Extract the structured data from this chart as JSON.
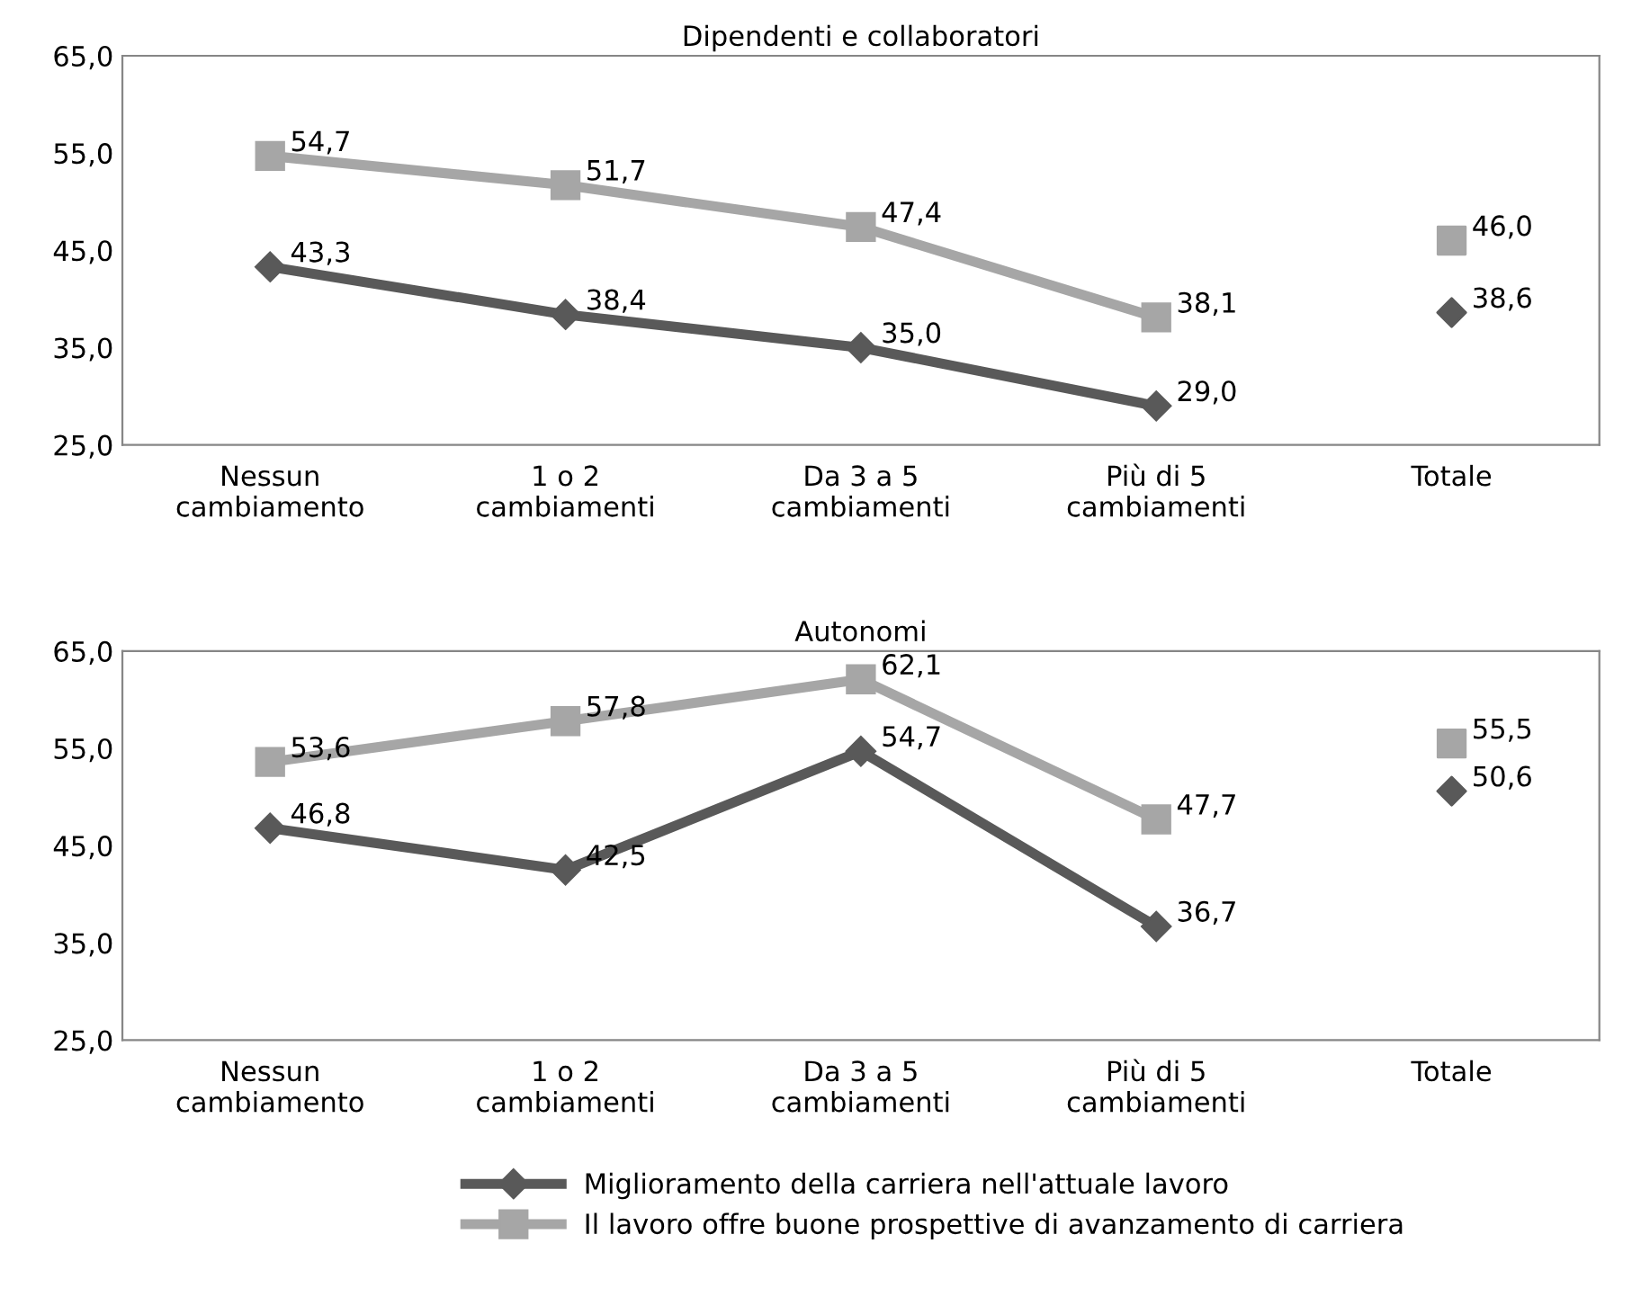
{
  "chart_data": [
    {
      "type": "line",
      "title": "Dipendenti e collaboratori",
      "categories": [
        "Nessun cambiamento",
        "1 o 2 cambiamenti",
        "Da 3 a 5 cambiamenti",
        "Più di 5 cambiamenti",
        "Totale"
      ],
      "ylim": [
        25,
        65
      ],
      "yticks": [
        {
          "value": 25,
          "label": "25,0"
        },
        {
          "value": 35,
          "label": "35,0"
        },
        {
          "value": 45,
          "label": "45,0"
        },
        {
          "value": 55,
          "label": "55,0"
        },
        {
          "value": 65,
          "label": "65,0"
        }
      ],
      "grid": false,
      "legend": "bottom",
      "series": [
        {
          "name": "Miglioramento della carriera nell'attuale lavoro",
          "color": "#595959",
          "marker": "diamond",
          "values": [
            43.3,
            38.4,
            35.0,
            29.0,
            null
          ],
          "value_labels": [
            "43,3",
            "38,4",
            "35,0",
            "29,0",
            null
          ]
        },
        {
          "name": "Il lavoro offre buone prospettive di avanzamento di carriera",
          "color": "#a6a6a6",
          "marker": "square",
          "values": [
            54.7,
            51.7,
            47.4,
            38.1,
            null
          ],
          "value_labels": [
            "54,7",
            "51,7",
            "47,4",
            "38,1",
            null
          ]
        },
        {
          "type": "scatter",
          "color": "#595959",
          "marker": "diamond",
          "values": [
            null,
            null,
            null,
            null,
            38.6
          ],
          "value_labels": [
            null,
            null,
            null,
            null,
            "38,6"
          ]
        },
        {
          "type": "scatter",
          "color": "#a6a6a6",
          "marker": "square",
          "values": [
            null,
            null,
            null,
            null,
            46.0
          ],
          "value_labels": [
            null,
            null,
            null,
            null,
            "46,0"
          ]
        }
      ]
    },
    {
      "type": "line",
      "title": "Autonomi",
      "categories": [
        "Nessun cambiamento",
        "1 o 2 cambiamenti",
        "Da 3 a 5 cambiamenti",
        "Più di 5 cambiamenti",
        "Totale"
      ],
      "ylim": [
        25,
        65
      ],
      "yticks": [
        {
          "value": 25,
          "label": "25,0"
        },
        {
          "value": 35,
          "label": "35,0"
        },
        {
          "value": 45,
          "label": "45,0"
        },
        {
          "value": 55,
          "label": "55,0"
        },
        {
          "value": 65,
          "label": "65,0"
        }
      ],
      "grid": false,
      "legend": "bottom",
      "series": [
        {
          "name": "Miglioramento della carriera nell'attuale lavoro",
          "color": "#595959",
          "marker": "diamond",
          "values": [
            46.8,
            42.5,
            54.7,
            36.7,
            null
          ],
          "value_labels": [
            "46,8",
            "42,5",
            "54,7",
            "36,7",
            null
          ]
        },
        {
          "name": "Il lavoro offre buone prospettive di avanzamento di carriera",
          "color": "#a6a6a6",
          "marker": "square",
          "values": [
            53.6,
            57.8,
            62.1,
            47.7,
            null
          ],
          "value_labels": [
            "53,6",
            "57,8",
            "62,1",
            "47,7",
            null
          ]
        },
        {
          "type": "scatter",
          "color": "#595959",
          "marker": "diamond",
          "values": [
            null,
            null,
            null,
            null,
            50.6
          ],
          "value_labels": [
            null,
            null,
            null,
            null,
            "50,6"
          ]
        },
        {
          "type": "scatter",
          "color": "#a6a6a6",
          "marker": "square",
          "values": [
            null,
            null,
            null,
            null,
            55.5
          ],
          "value_labels": [
            null,
            null,
            null,
            null,
            "55,5"
          ]
        }
      ]
    }
  ]
}
